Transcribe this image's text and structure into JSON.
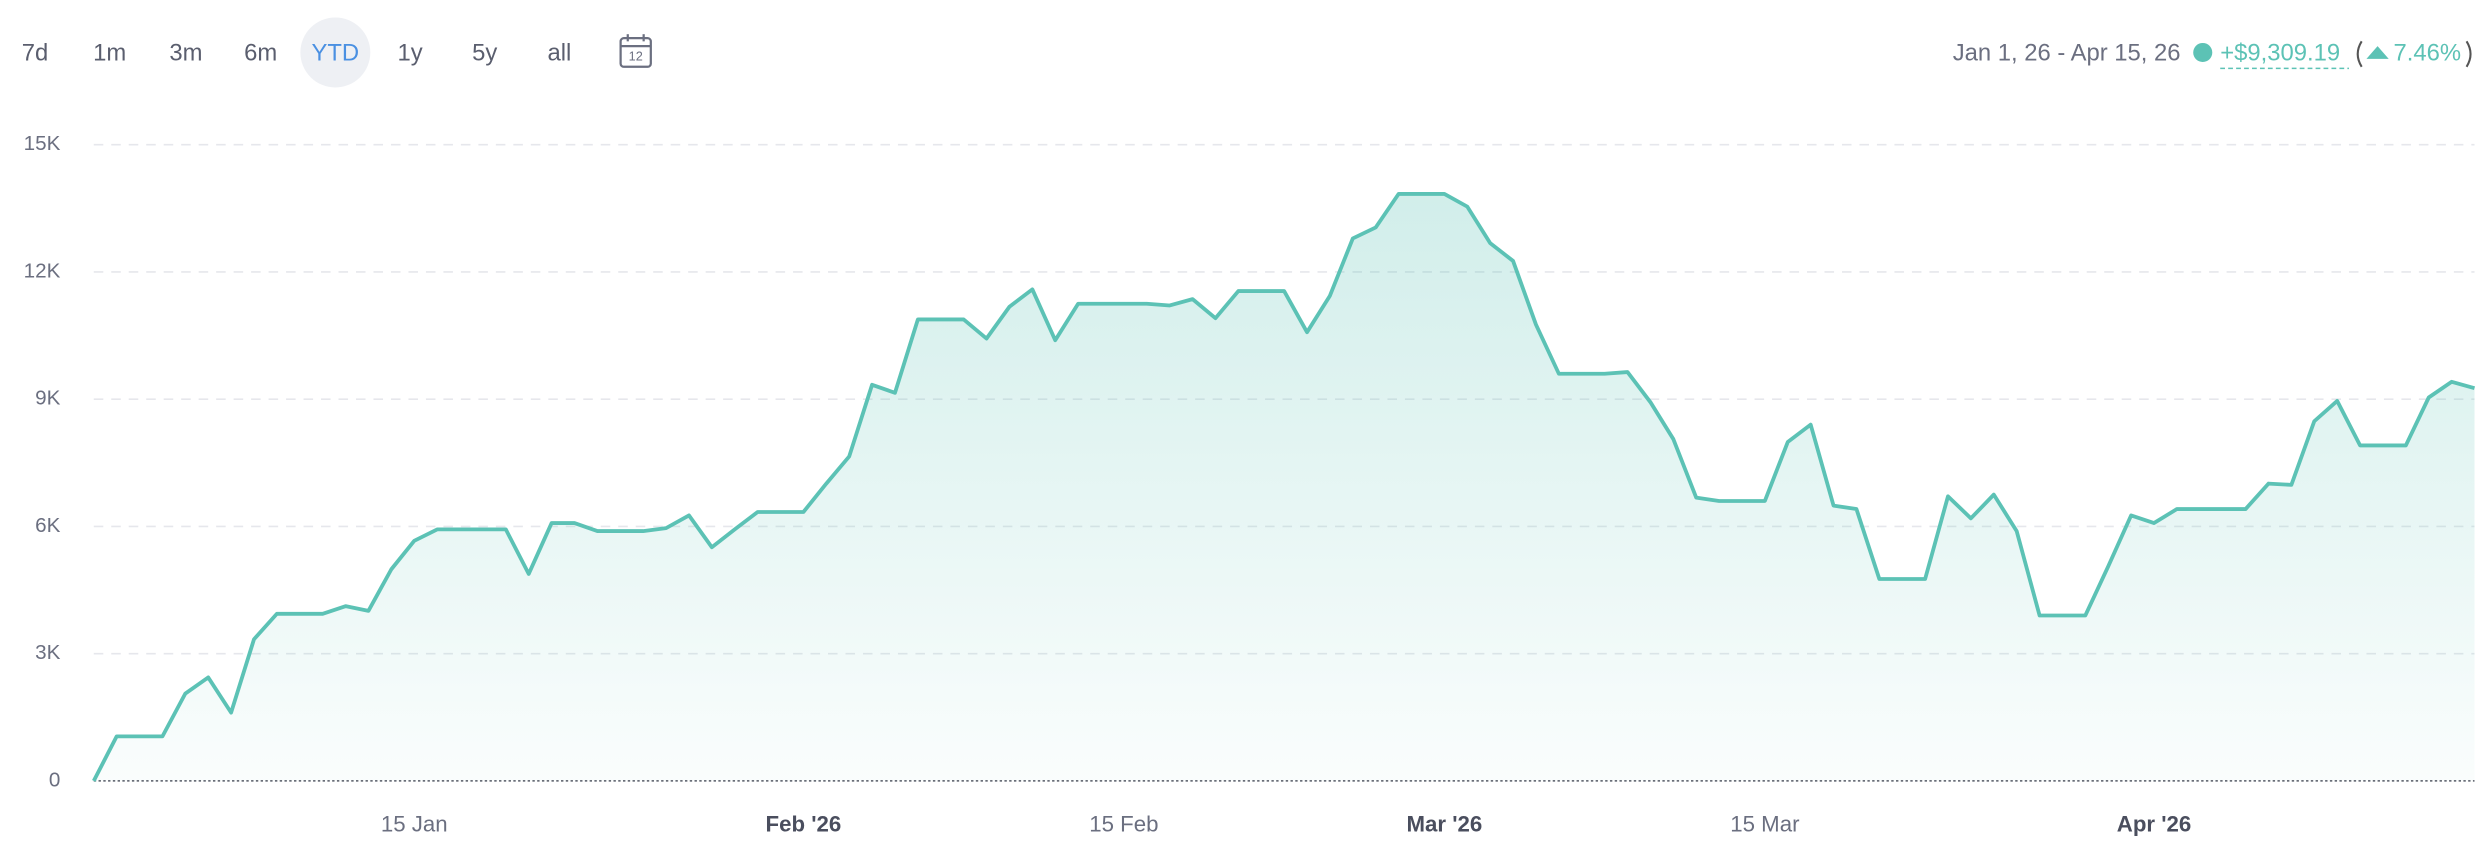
{
  "header": {
    "ranges": [
      {
        "label": "7d",
        "selected": false
      },
      {
        "label": "1m",
        "selected": false
      },
      {
        "label": "3m",
        "selected": false
      },
      {
        "label": "6m",
        "selected": false
      },
      {
        "label": "YTD",
        "selected": true
      },
      {
        "label": "1y",
        "selected": false
      },
      {
        "label": "5y",
        "selected": false
      },
      {
        "label": "all",
        "selected": false
      }
    ],
    "calendar_day": "12",
    "date_range": "Jan 1, 26 - Apr 15, 26",
    "change": "+$9,309.19",
    "change_pct": "7.46%"
  },
  "chart_data": {
    "type": "area",
    "color": "#5cc2b5",
    "grid": true,
    "x": [
      "2026-01-01",
      "2026-01-02",
      "2026-01-03",
      "2026-01-04",
      "2026-01-05",
      "2026-01-06",
      "2026-01-07",
      "2026-01-08",
      "2026-01-09",
      "2026-01-10",
      "2026-01-11",
      "2026-01-12",
      "2026-01-13",
      "2026-01-14",
      "2026-01-15",
      "2026-01-16",
      "2026-01-17",
      "2026-01-18",
      "2026-01-19",
      "2026-01-20",
      "2026-01-21",
      "2026-01-22",
      "2026-01-23",
      "2026-01-24",
      "2026-01-25",
      "2026-01-26",
      "2026-01-27",
      "2026-01-28",
      "2026-01-29",
      "2026-01-30",
      "2026-01-31",
      "2026-02-01",
      "2026-02-02",
      "2026-02-03",
      "2026-02-04",
      "2026-02-05",
      "2026-02-06",
      "2026-02-07",
      "2026-02-08",
      "2026-02-09",
      "2026-02-10",
      "2026-02-11",
      "2026-02-12",
      "2026-02-13",
      "2026-02-14",
      "2026-02-15",
      "2026-02-16",
      "2026-02-17",
      "2026-02-18",
      "2026-02-19",
      "2026-02-20",
      "2026-02-21",
      "2026-02-22",
      "2026-02-23",
      "2026-02-24",
      "2026-02-25",
      "2026-02-26",
      "2026-02-27",
      "2026-02-28",
      "2026-03-01",
      "2026-03-02",
      "2026-03-03",
      "2026-03-04",
      "2026-03-05",
      "2026-03-06",
      "2026-03-07",
      "2026-03-08",
      "2026-03-09",
      "2026-03-10",
      "2026-03-11",
      "2026-03-12",
      "2026-03-13",
      "2026-03-14",
      "2026-03-15",
      "2026-03-16",
      "2026-03-17",
      "2026-03-18",
      "2026-03-19",
      "2026-03-20",
      "2026-03-21",
      "2026-03-22",
      "2026-03-23",
      "2026-03-24",
      "2026-03-25",
      "2026-03-26",
      "2026-03-27",
      "2026-03-28",
      "2026-03-29",
      "2026-03-30",
      "2026-03-31",
      "2026-04-01",
      "2026-04-02",
      "2026-04-03",
      "2026-04-04",
      "2026-04-05",
      "2026-04-06",
      "2026-04-07",
      "2026-04-08",
      "2026-04-09",
      "2026-04-10",
      "2026-04-11",
      "2026-04-12",
      "2026-04-13",
      "2026-04-14",
      "2026-04-15"
    ],
    "values": [
      0,
      1050,
      1050,
      1050,
      2060,
      2440,
      1610,
      3340,
      3940,
      3940,
      3940,
      4120,
      4010,
      4990,
      5660,
      5930,
      5930,
      5930,
      5930,
      4880,
      6080,
      6080,
      5890,
      5890,
      5890,
      5960,
      6260,
      5510,
      5930,
      6340,
      6340,
      6340,
      7010,
      7650,
      9340,
      9150,
      10880,
      10880,
      10880,
      10430,
      11180,
      11590,
      10390,
      11250,
      11250,
      11250,
      11250,
      11210,
      11360,
      10910,
      11550,
      11550,
      11550,
      10580,
      11440,
      12790,
      13050,
      13840,
      13840,
      13840,
      13540,
      12680,
      12260,
      10760,
      9600,
      9600,
      9600,
      9640,
      8930,
      8060,
      6680,
      6600,
      6600,
      6600,
      7990,
      8400,
      6490,
      6410,
      4760,
      4760,
      4760,
      6710,
      6190,
      6750,
      5890,
      3900,
      3900,
      3900,
      5060,
      6260,
      6080,
      6410,
      6410,
      6410,
      6410,
      7010,
      6980,
      8480,
      8960,
      7910,
      7910,
      7910,
      9040,
      9410,
      9260
    ],
    "ylim": [
      0,
      15000
    ],
    "yticks": [
      0,
      {
        "value": 3000,
        "label": "3K"
      },
      {
        "value": 6000,
        "label": "6K"
      },
      {
        "value": 9000,
        "label": "9K"
      },
      {
        "value": 12000,
        "label": "12K"
      },
      {
        "value": 15000,
        "label": "15K"
      }
    ],
    "xticks": [
      {
        "value": "2026-01-15",
        "label": "15 Jan"
      },
      {
        "value": "2026-02-01",
        "label": "Feb '26"
      },
      {
        "value": "2026-02-15",
        "label": "15 Feb"
      },
      {
        "value": "2026-03-01",
        "label": "Mar '26"
      },
      {
        "value": "2026-03-15",
        "label": "15 Mar"
      },
      {
        "value": "2026-04-01",
        "label": "Apr '26"
      }
    ]
  }
}
